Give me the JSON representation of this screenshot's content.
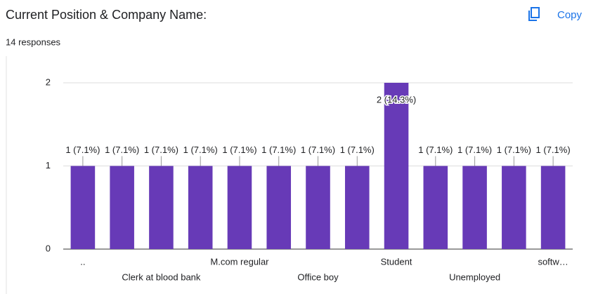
{
  "header": {
    "title": "Current Position & Company Name:",
    "subtitle": "14 responses",
    "action": "Copy"
  },
  "chart_data": {
    "type": "bar",
    "categories": [
      "..",
      null,
      "Clerk at blood bank",
      null,
      "M.com regular",
      null,
      "Office boy",
      null,
      "Student",
      null,
      "Unemployed",
      null,
      "softw…"
    ],
    "values": [
      1,
      1,
      1,
      1,
      1,
      1,
      1,
      1,
      2,
      1,
      1,
      1,
      1
    ],
    "value_labels": [
      "1 (7.1%)",
      "1 (7.1%)",
      "1 (7.1%)",
      "1 (7.1%)",
      "1 (7.1%)",
      "1 (7.1%)",
      "1 (7.1%)",
      "1 (7.1%)",
      "2 (14.3%)",
      "1 (7.1%)",
      "1 (7.1%)",
      "1 (7.1%)",
      "1 (7.1%)"
    ],
    "color": "#673ab7",
    "ylim": [
      0,
      2
    ],
    "yticks": [
      0,
      1,
      2
    ],
    "grid": true
  }
}
